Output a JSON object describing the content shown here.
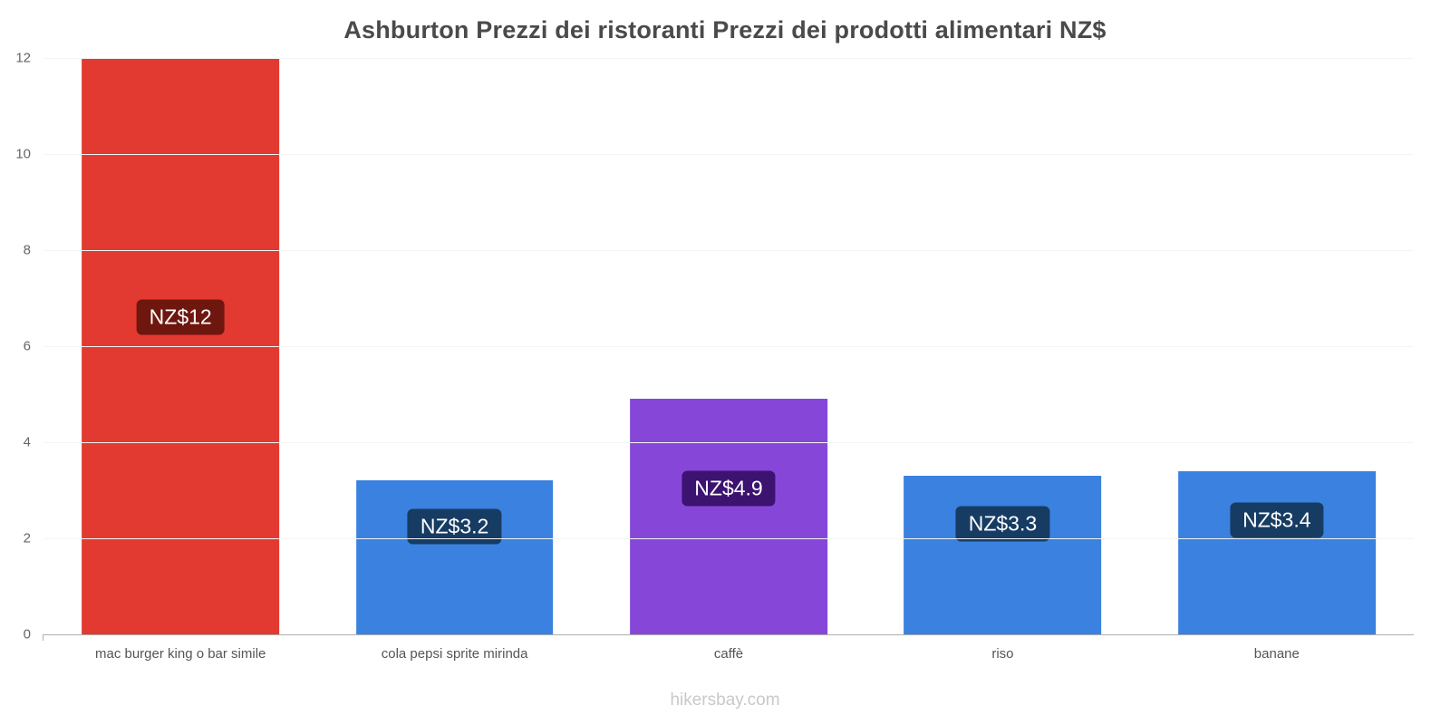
{
  "chart_data": {
    "type": "bar",
    "title": "Ashburton Prezzi dei ristoranti Prezzi dei prodotti alimentari NZ$",
    "categories": [
      "mac burger king o bar simile",
      "cola pepsi sprite mirinda",
      "caffè",
      "riso",
      "banane"
    ],
    "values": [
      12,
      3.2,
      4.9,
      3.3,
      3.4
    ],
    "bar_labels": [
      "NZ$12",
      "NZ$3.2",
      "NZ$4.9",
      "NZ$3.3",
      "NZ$3.4"
    ],
    "bar_colors": [
      "#e23a30",
      "#3a81e0",
      "#8647d9",
      "#3a81e0",
      "#3a81e0"
    ],
    "label_bg_colors": [
      "#6e170f",
      "#173c63",
      "#3c1370",
      "#173c63",
      "#173c63"
    ],
    "y_ticks": [
      0,
      2,
      4,
      6,
      8,
      10,
      12
    ],
    "ylim": [
      0,
      12
    ],
    "xlabel": "",
    "ylabel": "",
    "grid": true,
    "legend": false
  },
  "footer": {
    "site": "hikersbay.com"
  }
}
